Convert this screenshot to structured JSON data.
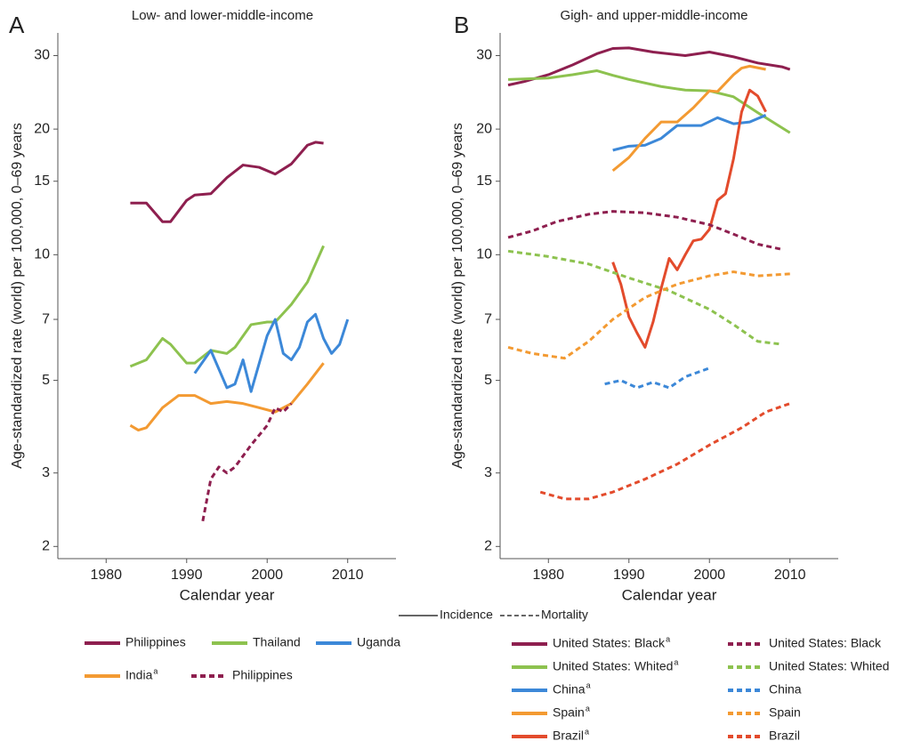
{
  "chart_data": [
    {
      "type": "line",
      "panel": "A",
      "title": "Low- and lower-middle-income",
      "y_label": "Age-standardized rate (world) per 100,000, 0–69 years",
      "x_label": "Calendar year",
      "log_y": true,
      "xlim": [
        1974,
        2016
      ],
      "xticks": [
        1980,
        1990,
        2000,
        2010
      ],
      "ylim": [
        1.87,
        34
      ],
      "yticks": [
        2,
        3,
        5,
        7,
        10,
        15,
        20,
        30
      ],
      "series": [
        {
          "name": "Philippines",
          "color": "#8e1f4f",
          "dash": "solid",
          "x": [
            1983,
            1985,
            1987,
            1988,
            1990,
            1991,
            1993,
            1995,
            1997,
            1999,
            2001,
            2003,
            2005,
            2006,
            2007
          ],
          "values": [
            13.3,
            13.3,
            12.0,
            12.0,
            13.5,
            13.9,
            14.0,
            15.3,
            16.4,
            16.2,
            15.6,
            16.5,
            18.3,
            18.6,
            18.5
          ]
        },
        {
          "name": "Thailand",
          "color": "#8dc24f",
          "dash": "solid",
          "x": [
            1983,
            1985,
            1987,
            1988,
            1990,
            1991,
            1993,
            1995,
            1996,
            1998,
            2000,
            2001,
            2003,
            2005,
            2007
          ],
          "values": [
            5.4,
            5.6,
            6.3,
            6.1,
            5.5,
            5.5,
            5.9,
            5.8,
            6.0,
            6.8,
            6.9,
            6.9,
            7.6,
            8.6,
            10.5
          ]
        },
        {
          "name": "Uganda",
          "color": "#3c88d8",
          "dash": "solid",
          "x": [
            1991,
            1993,
            1995,
            1996,
            1997,
            1998,
            2000,
            2001,
            2002,
            2003,
            2004,
            2005,
            2006,
            2007,
            2008,
            2009,
            2010
          ],
          "values": [
            5.2,
            5.9,
            4.8,
            4.9,
            5.6,
            4.7,
            6.4,
            7.0,
            5.8,
            5.6,
            6.0,
            6.9,
            7.2,
            6.3,
            5.8,
            6.1,
            7.0
          ]
        },
        {
          "name": "India",
          "note": "a",
          "color": "#f39a32",
          "dash": "solid",
          "x": [
            1983,
            1984,
            1985,
            1987,
            1989,
            1991,
            1993,
            1995,
            1997,
            1999,
            2001,
            2003,
            2005,
            2007
          ],
          "values": [
            3.9,
            3.8,
            3.85,
            4.3,
            4.6,
            4.6,
            4.4,
            4.45,
            4.4,
            4.3,
            4.2,
            4.4,
            4.9,
            5.5
          ]
        },
        {
          "name": "Philippines",
          "color": "#8e1f4f",
          "dash": "dashed",
          "x": [
            1992,
            1993,
            1994,
            1995,
            1996,
            1998,
            2000,
            2001,
            2002,
            2003
          ],
          "values": [
            2.3,
            2.9,
            3.1,
            3.0,
            3.1,
            3.5,
            3.9,
            4.3,
            4.2,
            4.4
          ]
        }
      ]
    },
    {
      "type": "line",
      "panel": "B",
      "title": "Gigh- and upper-middle-income",
      "y_label": "Age-standardized rate (world) per 100,000, 0–69 years",
      "x_label": "Calendar year",
      "log_y": true,
      "xlim": [
        1974,
        2016
      ],
      "xticks": [
        1980,
        1990,
        2000,
        2010
      ],
      "ylim": [
        1.87,
        34
      ],
      "yticks": [
        2,
        3,
        5,
        7,
        10,
        15,
        20,
        30
      ],
      "series": [
        {
          "name": "United States: Black",
          "note": "a",
          "color": "#8e1f4f",
          "dash": "solid",
          "x": [
            1975,
            1977,
            1980,
            1983,
            1986,
            1988,
            1990,
            1993,
            1997,
            2000,
            2003,
            2006,
            2009,
            2010
          ],
          "values": [
            25.5,
            26,
            27,
            28.5,
            30.3,
            31.2,
            31.3,
            30.6,
            30.0,
            30.6,
            29.8,
            28.8,
            28.2,
            27.8
          ]
        },
        {
          "name": "United States: Whited",
          "note": "a",
          "color": "#8dc24f",
          "dash": "solid",
          "x": [
            1975,
            1980,
            1983,
            1986,
            1988,
            1990,
            1994,
            1997,
            2000,
            2003,
            2006,
            2010
          ],
          "values": [
            26.3,
            26.5,
            27.0,
            27.6,
            26.9,
            26.3,
            25.3,
            24.8,
            24.7,
            23.9,
            21.9,
            19.6
          ]
        },
        {
          "name": "China",
          "note": "a",
          "color": "#3c88d8",
          "dash": "solid",
          "x": [
            1988,
            1990,
            1992,
            1994,
            1996,
            1999,
            2001,
            2003,
            2005,
            2007
          ],
          "values": [
            17.8,
            18.2,
            18.3,
            19.0,
            20.4,
            20.4,
            21.3,
            20.6,
            20.8,
            21.6
          ]
        },
        {
          "name": "Spain",
          "note": "a",
          "color": "#f39a32",
          "dash": "solid",
          "x": [
            1988,
            1990,
            1992,
            1994,
            1996,
            1998,
            2000,
            2001,
            2003,
            2004,
            2005,
            2007
          ],
          "values": [
            15.9,
            17.1,
            19.0,
            20.8,
            20.8,
            22.5,
            24.7,
            24.6,
            27.0,
            28.0,
            28.3,
            27.8
          ]
        },
        {
          "name": "Brazil",
          "note": "a",
          "color": "#e34b2c",
          "dash": "solid",
          "x": [
            1988,
            1989,
            1990,
            1991,
            1992,
            1993,
            1994,
            1995,
            1996,
            1997,
            1998,
            1999,
            2000,
            2001,
            2002,
            2003,
            2004,
            2005,
            2006,
            2007
          ],
          "values": [
            9.6,
            8.5,
            7.1,
            6.5,
            6.0,
            6.9,
            8.3,
            9.8,
            9.2,
            10.0,
            10.8,
            10.9,
            11.5,
            13.5,
            14.0,
            17.0,
            22.0,
            24.8,
            24.0,
            22.0
          ]
        },
        {
          "name": "United States: Black",
          "color": "#8e1f4f",
          "dash": "dashed",
          "x": [
            1975,
            1978,
            1981,
            1985,
            1988,
            1992,
            1996,
            2000,
            2003,
            2006,
            2009
          ],
          "values": [
            11.0,
            11.4,
            12.0,
            12.5,
            12.7,
            12.6,
            12.3,
            11.8,
            11.2,
            10.6,
            10.3
          ]
        },
        {
          "name": "United States: Whited",
          "color": "#8dc24f",
          "dash": "dashed",
          "x": [
            1975,
            1980,
            1985,
            1990,
            1995,
            2000,
            2003,
            2006,
            2009
          ],
          "values": [
            10.2,
            9.9,
            9.5,
            8.8,
            8.2,
            7.4,
            6.8,
            6.2,
            6.1
          ]
        },
        {
          "name": "China",
          "color": "#3c88d8",
          "dash": "dashed",
          "x": [
            1987,
            1989,
            1991,
            1993,
            1995,
            1997,
            2000
          ],
          "values": [
            4.9,
            5.0,
            4.8,
            4.95,
            4.8,
            5.1,
            5.35
          ]
        },
        {
          "name": "Spain",
          "color": "#f39a32",
          "dash": "dashed",
          "x": [
            1975,
            1978,
            1982,
            1985,
            1988,
            1992,
            1996,
            2000,
            2003,
            2006,
            2010
          ],
          "values": [
            6.0,
            5.8,
            5.65,
            6.2,
            7.0,
            7.9,
            8.5,
            8.9,
            9.1,
            8.9,
            9.0
          ]
        },
        {
          "name": "Brazil",
          "color": "#e34b2c",
          "dash": "dashed",
          "x": [
            1979,
            1982,
            1985,
            1988,
            1992,
            1996,
            2000,
            2004,
            2007,
            2010
          ],
          "values": [
            2.7,
            2.6,
            2.6,
            2.7,
            2.9,
            3.15,
            3.5,
            3.85,
            4.2,
            4.4
          ]
        }
      ]
    }
  ],
  "line_styles": [
    {
      "label": "Incidence",
      "dash": "solid"
    },
    {
      "label": "Mortality",
      "dash": "dashed"
    }
  ]
}
